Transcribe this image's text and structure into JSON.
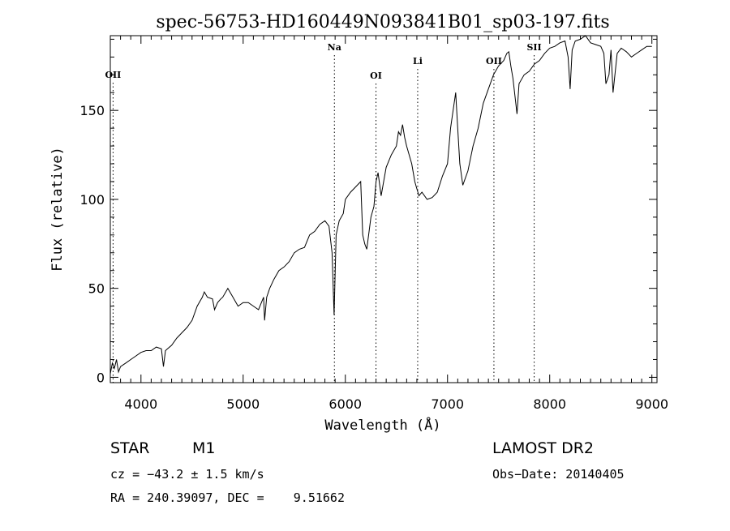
{
  "chart_data": {
    "type": "line",
    "title": "spec-56753-HD160449N093841B01_sp03-197.fits",
    "xlabel": "Wavelength (Å)",
    "ylabel": "Flux (relative)",
    "xlim": [
      3700,
      9050
    ],
    "ylim": [
      -3,
      192
    ],
    "xticks": [
      4000,
      5000,
      6000,
      7000,
      8000,
      9000
    ],
    "yticks": [
      0,
      50,
      100,
      150
    ],
    "grid": false,
    "line_color": "#000000",
    "series": [
      {
        "x": [
          3700,
          3720,
          3740,
          3760,
          3780,
          3800,
          3850,
          3900,
          3950,
          4000,
          4050,
          4100,
          4150,
          4200,
          4220,
          4240,
          4260,
          4300,
          4350,
          4400,
          4450,
          4500,
          4550,
          4600,
          4620,
          4650,
          4700,
          4720,
          4750,
          4780,
          4800,
          4850,
          4900,
          4950,
          5000,
          5050,
          5100,
          5150,
          5200,
          5210,
          5230,
          5260,
          5300,
          5350,
          5400,
          5450,
          5500,
          5550,
          5600,
          5650,
          5700,
          5750,
          5800,
          5840,
          5870,
          5890,
          5910,
          5940,
          5980,
          6000,
          6050,
          6100,
          6150,
          6170,
          6190,
          6210,
          6250,
          6280,
          6300,
          6320,
          6350,
          6400,
          6450,
          6500,
          6520,
          6540,
          6560,
          6580,
          6600,
          6650,
          6680,
          6700,
          6720,
          6750,
          6800,
          6850,
          6900,
          6950,
          7000,
          7030,
          7050,
          7080,
          7100,
          7120,
          7150,
          7200,
          7250,
          7300,
          7350,
          7400,
          7450,
          7500,
          7550,
          7580,
          7600,
          7620,
          7640,
          7660,
          7680,
          7700,
          7750,
          7800,
          7850,
          7900,
          7950,
          8000,
          8050,
          8100,
          8150,
          8180,
          8200,
          8220,
          8250,
          8300,
          8350,
          8400,
          8450,
          8500,
          8530,
          8550,
          8580,
          8600,
          8620,
          8660,
          8700,
          8750,
          8800,
          8850,
          8900,
          8950,
          9000
        ],
        "y": [
          2,
          8,
          5,
          10,
          3,
          6,
          8,
          10,
          12,
          14,
          15,
          15,
          17,
          16,
          6,
          15,
          16,
          18,
          22,
          25,
          28,
          32,
          40,
          45,
          48,
          45,
          44,
          38,
          42,
          44,
          45,
          50,
          45,
          40,
          42,
          42,
          40,
          38,
          45,
          32,
          45,
          50,
          55,
          60,
          62,
          65,
          70,
          72,
          73,
          80,
          82,
          86,
          88,
          85,
          70,
          35,
          80,
          88,
          92,
          100,
          104,
          107,
          110,
          80,
          75,
          72,
          90,
          96,
          110,
          115,
          102,
          118,
          125,
          130,
          138,
          136,
          142,
          135,
          130,
          120,
          110,
          106,
          102,
          104,
          100,
          101,
          104,
          113,
          120,
          140,
          148,
          160,
          140,
          120,
          108,
          116,
          130,
          140,
          154,
          162,
          170,
          175,
          178,
          182,
          183,
          175,
          168,
          158,
          148,
          165,
          170,
          172,
          176,
          178,
          182,
          185,
          186,
          188,
          189,
          180,
          162,
          184,
          189,
          190,
          192,
          188,
          187,
          186,
          182,
          165,
          170,
          184,
          160,
          182,
          185,
          183,
          180,
          182,
          184,
          186,
          186
        ]
      }
    ],
    "annotations": [
      {
        "label": "OII",
        "x": 3727
      },
      {
        "label": "Na",
        "x": 5893
      },
      {
        "label": "OI",
        "x": 6300
      },
      {
        "label": "Li",
        "x": 6708
      },
      {
        "label": "OII",
        "x": 7454
      },
      {
        "label": "SII",
        "x": 7848
      }
    ]
  },
  "info": {
    "object_class": "STAR",
    "subclass": "M1",
    "survey": "LAMOST DR2",
    "cz": "cz = −43.2 ± 1.5 km/s",
    "obs_date": "Obs−Date: 20140405",
    "coords": "RA = 240.39097, DEC =    9.51662"
  }
}
